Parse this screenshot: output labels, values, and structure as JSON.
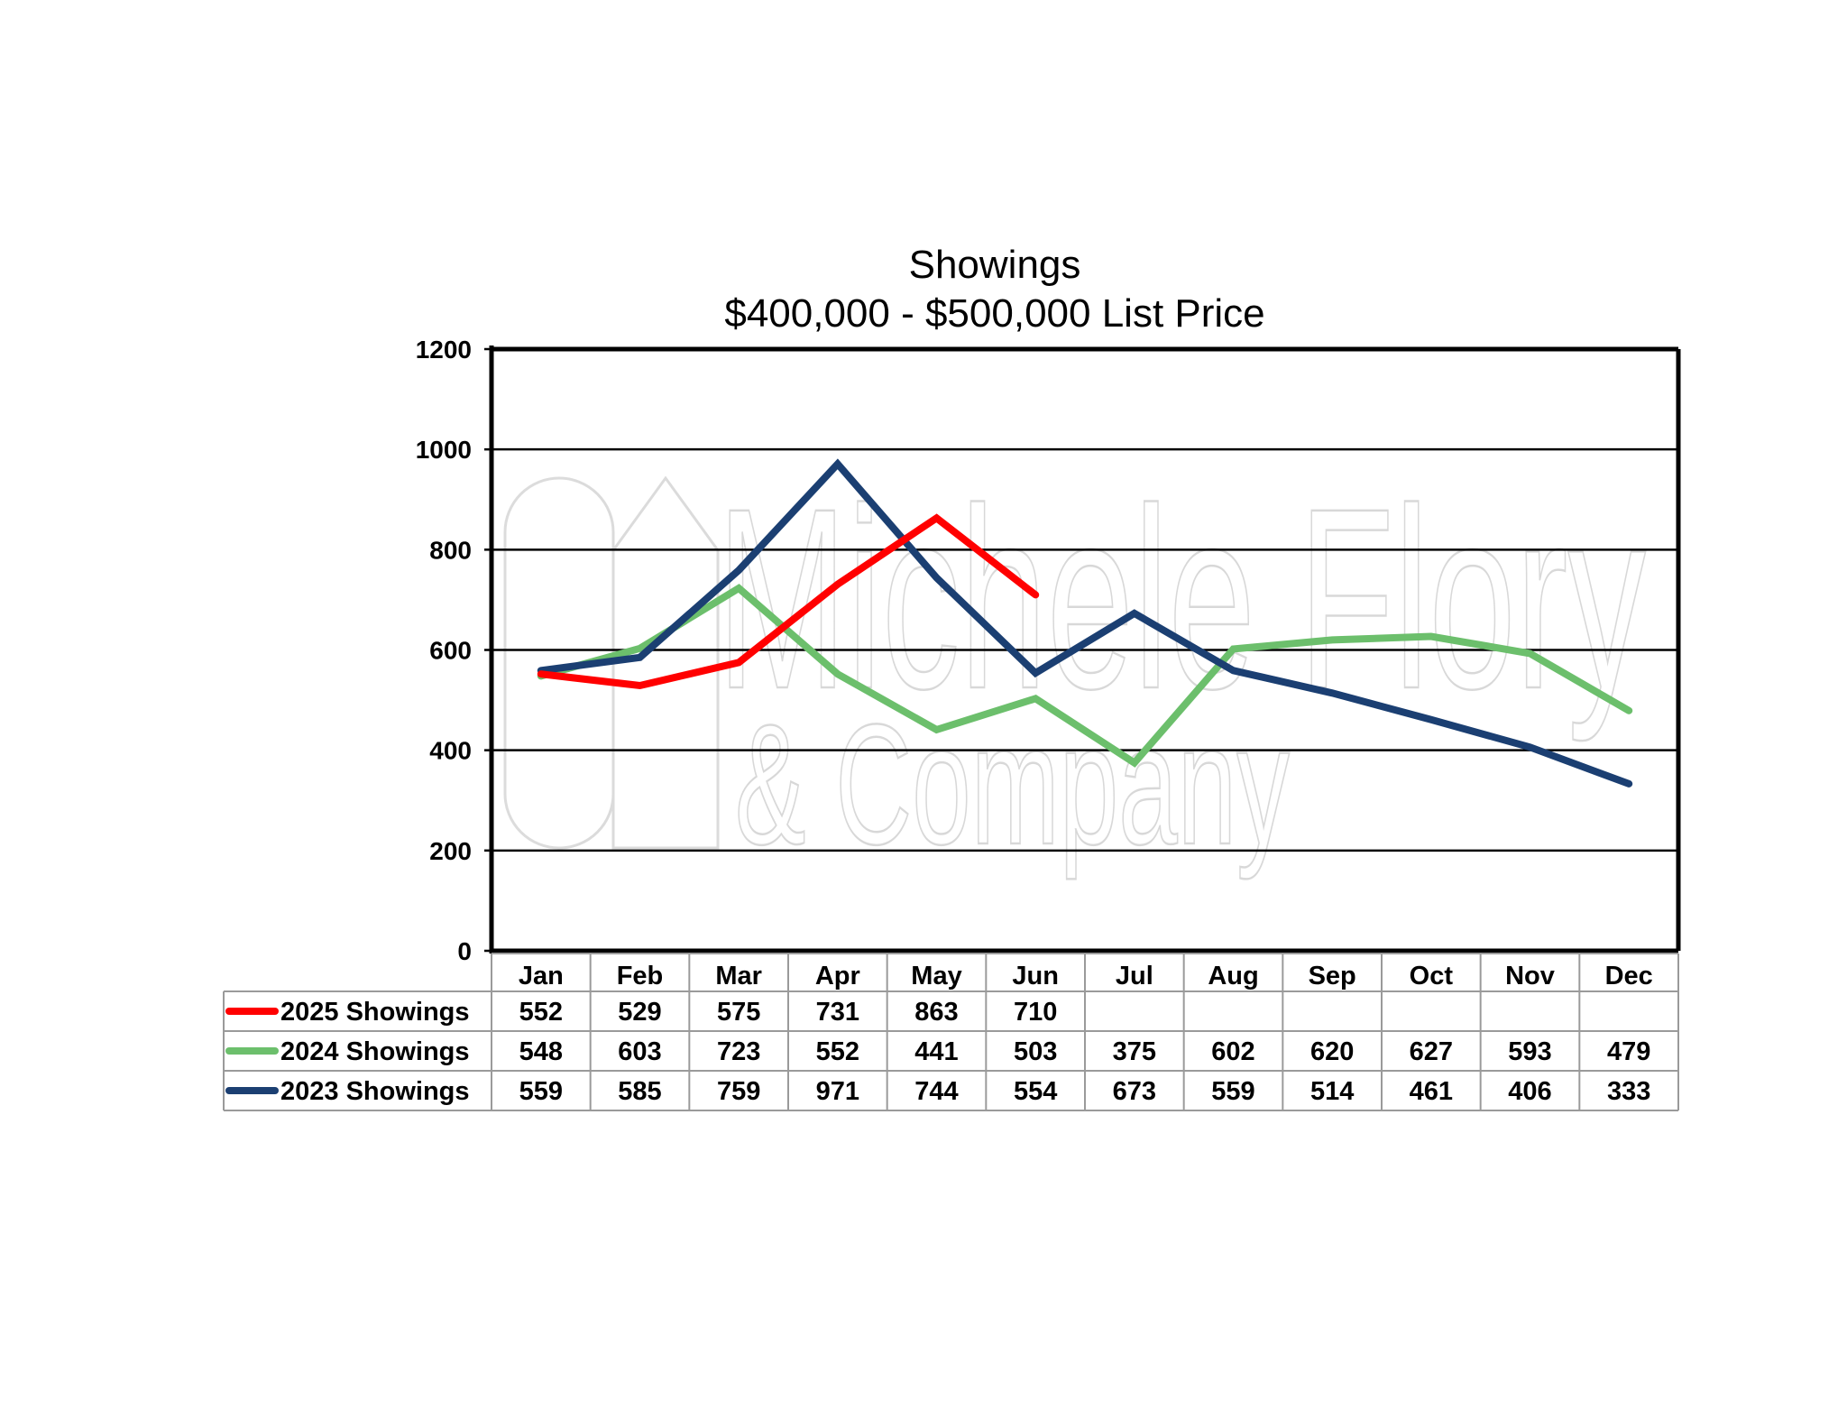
{
  "chart_data": {
    "type": "line",
    "title": "Showings",
    "subtitle": "$400,000 - $500,000 List Price",
    "categories": [
      "Jan",
      "Feb",
      "Mar",
      "Apr",
      "May",
      "Jun",
      "Jul",
      "Aug",
      "Sep",
      "Oct",
      "Nov",
      "Dec"
    ],
    "ylim": [
      0,
      1200
    ],
    "yticks": [
      0,
      200,
      400,
      600,
      800,
      1000,
      1200
    ],
    "grid": true,
    "legend": "data-table-below",
    "series": [
      {
        "name": "2025 Showings",
        "color": "#ff0000",
        "values": [
          552,
          529,
          575,
          731,
          863,
          710,
          null,
          null,
          null,
          null,
          null,
          null
        ]
      },
      {
        "name": "2024 Showings",
        "color": "#6cbf6c",
        "values": [
          548,
          603,
          723,
          552,
          441,
          503,
          375,
          602,
          620,
          627,
          593,
          479
        ]
      },
      {
        "name": "2023 Showings",
        "color": "#1b3f72",
        "values": [
          559,
          585,
          759,
          971,
          744,
          554,
          673,
          559,
          514,
          461,
          406,
          333
        ]
      }
    ]
  },
  "watermark": {
    "line1": "Michele Flory",
    "line2": "& Company"
  }
}
